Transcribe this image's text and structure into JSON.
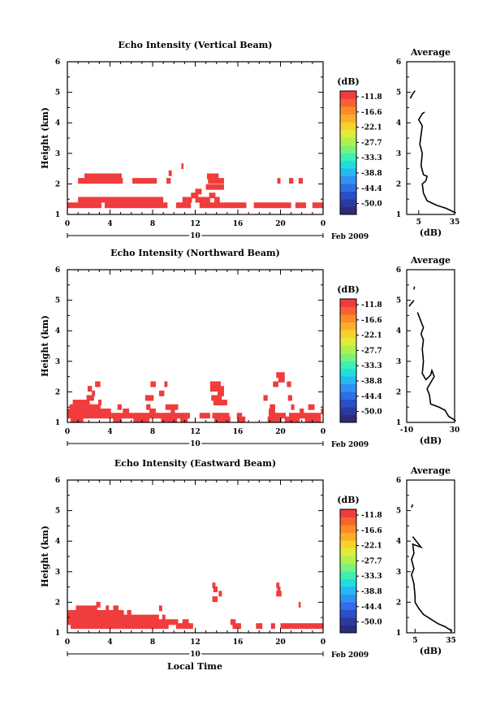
{
  "figure": {
    "date_label": "Feb 2009",
    "day_label": "10",
    "xlabel": "Local Time",
    "colorbar_unit": "(dB)",
    "colorbar_ticks": [
      "-11.8",
      "-16.6",
      "-22.1",
      "-27.7",
      "-33.3",
      "-38.8",
      "-44.4",
      "-50.0"
    ],
    "colorbar_colors": [
      "#2c2c7c",
      "#2c3a9c",
      "#2850c8",
      "#2f6ee4",
      "#2f92f2",
      "#26b8f0",
      "#22dde0",
      "#3ef0b0",
      "#7cf27a",
      "#b2f050",
      "#e0ec38",
      "#f6d22c",
      "#fcae28",
      "#fc8a2c",
      "#f8622e",
      "#f03c3c"
    ],
    "echo_color": "#f03c3c",
    "x_ticks": [
      "0",
      "4",
      "8",
      "12",
      "16",
      "20",
      "0"
    ],
    "ylabel": "Height (km)",
    "y_ticks": [
      "1",
      "2",
      "3",
      "4",
      "5",
      "6"
    ],
    "avg_title": "Average",
    "avg_xlabel": "(dB)"
  },
  "panels": [
    {
      "title": "Echo Intensity (Vertical Beam)",
      "avg_ticks": [
        "5",
        "35"
      ],
      "avg_xlim": [
        -5,
        35
      ],
      "echo_rows": [
        {
          "h": 1.3,
          "segs": [
            [
              0,
              3.2
            ],
            [
              3.5,
              9.4
            ],
            [
              10.2,
              11.6
            ],
            [
              12.4,
              16.8
            ],
            [
              17.5,
              21
            ],
            [
              21.4,
              22.4
            ],
            [
              23,
              24
            ]
          ]
        },
        {
          "h": 1.48,
          "segs": [
            [
              1,
              9
            ],
            [
              10.8,
              11.7
            ],
            [
              12,
              13.4
            ],
            [
              13.8,
              14.3
            ]
          ]
        },
        {
          "h": 1.62,
          "segs": [
            [
              11.6,
              12.3
            ],
            [
              13.3,
              13.9
            ]
          ]
        },
        {
          "h": 1.75,
          "segs": [
            [
              12,
              12.6
            ]
          ]
        },
        {
          "h": 1.9,
          "segs": [
            [
              13,
              14.7
            ]
          ]
        },
        {
          "h": 2.1,
          "segs": [
            [
              1,
              5.2
            ],
            [
              6.1,
              8.4
            ],
            [
              9.3,
              9.7
            ],
            [
              13.2,
              14.7
            ],
            [
              19.7,
              20
            ],
            [
              20.8,
              21.2
            ],
            [
              21.7,
              22.1
            ]
          ]
        },
        {
          "h": 2.25,
          "segs": [
            [
              1.6,
              5.1
            ],
            [
              13.1,
              14.2
            ]
          ]
        },
        {
          "h": 2.35,
          "segs": [
            [
              9.5,
              9.8
            ]
          ]
        },
        {
          "h": 2.58,
          "segs": [
            [
              10.7,
              10.9
            ]
          ]
        }
      ],
      "avg_profile": [
        [
          36,
          1.05
        ],
        [
          28,
          1.2
        ],
        [
          20,
          1.3
        ],
        [
          12,
          1.45
        ],
        [
          9,
          1.7
        ],
        [
          8,
          2.0
        ],
        [
          11,
          2.1
        ],
        [
          12,
          2.25
        ],
        [
          9,
          2.3
        ],
        [
          7,
          2.6
        ],
        [
          8,
          3.0
        ],
        [
          6,
          3.3
        ],
        [
          7,
          3.6
        ],
        [
          8,
          3.9
        ],
        [
          5,
          4.1
        ],
        [
          8,
          4.3
        ],
        [
          10,
          4.35
        ]
      ],
      "avg_profile2": [
        [
          -2,
          4.8
        ],
        [
          0,
          4.95
        ],
        [
          2,
          5.05
        ]
      ]
    },
    {
      "title": "Echo Intensity (Northward Beam)",
      "avg_ticks": [
        "-10",
        "30"
      ],
      "avg_xlim": [
        -10,
        30
      ],
      "echo_rows": [
        {
          "h": 1.1,
          "segs": [
            [
              0.3,
              1.5
            ],
            [
              4.3,
              5.1
            ],
            [
              6.2,
              7.7
            ],
            [
              8.8,
              10.3
            ],
            [
              10.6,
              11.3
            ],
            [
              13.8,
              15.3
            ],
            [
              16,
              16.7
            ],
            [
              18.8,
              20.1
            ],
            [
              20.4,
              21.8
            ],
            [
              22.3,
              23.8
            ]
          ]
        },
        {
          "h": 1.22,
          "segs": [
            [
              0,
              11.5
            ],
            [
              12.4,
              13.4
            ],
            [
              13.6,
              15.2
            ],
            [
              15.9,
              16.4
            ],
            [
              18.9,
              20.5
            ],
            [
              20.8,
              23.8
            ]
          ]
        },
        {
          "h": 1.36,
          "segs": [
            [
              0,
              4.1
            ],
            [
              5.2,
              5.8
            ],
            [
              7.7,
              8.3
            ],
            [
              9.7,
              10.1
            ],
            [
              18.9,
              19.5
            ],
            [
              21.8,
              22.2
            ],
            [
              23.8,
              24
            ]
          ]
        },
        {
          "h": 1.5,
          "segs": [
            [
              0.2,
              3.1
            ],
            [
              4.7,
              5.1
            ],
            [
              7.4,
              7.8
            ],
            [
              9.2,
              10.4
            ],
            [
              19,
              19.5
            ],
            [
              21,
              21.3
            ],
            [
              22.6,
              23.2
            ]
          ]
        },
        {
          "h": 1.65,
          "segs": [
            [
              0.5,
              2.1
            ],
            [
              2.9,
              3.2
            ],
            [
              13.7,
              15
            ]
          ]
        },
        {
          "h": 1.8,
          "segs": [
            [
              1.8,
              2.5
            ],
            [
              7.3,
              8.1
            ],
            [
              13.5,
              14.5
            ],
            [
              18.4,
              18.8
            ],
            [
              20.7,
              21.1
            ]
          ]
        },
        {
          "h": 1.95,
          "segs": [
            [
              2.3,
              2.6
            ],
            [
              8.6,
              9.1
            ],
            [
              14.1,
              14.7
            ]
          ]
        },
        {
          "h": 2.1,
          "segs": [
            [
              1.9,
              2.3
            ],
            [
              13.4,
              14.7
            ]
          ]
        },
        {
          "h": 2.25,
          "segs": [
            [
              2.6,
              3.1
            ],
            [
              7.8,
              8.3
            ],
            [
              9.1,
              9.4
            ],
            [
              13.4,
              14.4
            ],
            [
              19.3,
              19.8
            ],
            [
              20.6,
              21
            ]
          ]
        },
        {
          "h": 2.4,
          "segs": [
            [
              19.8,
              20.4
            ]
          ]
        },
        {
          "h": 2.55,
          "segs": [
            [
              19.6,
              20.4
            ]
          ]
        }
      ],
      "avg_profile": [
        [
          31,
          1.05
        ],
        [
          25,
          1.2
        ],
        [
          22,
          1.4
        ],
        [
          17,
          1.5
        ],
        [
          10,
          1.6
        ],
        [
          9,
          1.9
        ],
        [
          7,
          2.1
        ],
        [
          13,
          2.5
        ],
        [
          11,
          2.7
        ],
        [
          10,
          2.55
        ],
        [
          6,
          2.4
        ],
        [
          3,
          2.6
        ],
        [
          4,
          3.0
        ],
        [
          3,
          3.4
        ],
        [
          4,
          3.7
        ],
        [
          2,
          3.9
        ],
        [
          4,
          4.1
        ],
        [
          2,
          4.3
        ],
        [
          0,
          4.5
        ],
        [
          -1,
          4.6
        ]
      ],
      "avg_profile2": [
        [
          -8,
          4.8
        ],
        [
          -6,
          4.9
        ],
        [
          -4,
          5.0
        ]
      ],
      "avg_profile3": [
        [
          -4,
          5.35
        ],
        [
          -3.5,
          5.45
        ]
      ]
    },
    {
      "title": "Echo Intensity (Eastward Beam)",
      "avg_ticks": [
        "5",
        "35"
      ],
      "avg_xlim": [
        -2,
        38
      ],
      "echo_rows": [
        {
          "h": 1.22,
          "segs": [
            [
              0.3,
              9.5
            ],
            [
              10.2,
              11.8
            ],
            [
              15.5,
              16.3
            ],
            [
              17.7,
              18.3
            ],
            [
              19.1,
              19.5
            ],
            [
              20,
              24
            ]
          ]
        },
        {
          "h": 1.35,
          "segs": [
            [
              0,
              10.4
            ],
            [
              10.8,
              11.4
            ],
            [
              15.3,
              15.8
            ]
          ]
        },
        {
          "h": 1.5,
          "segs": [
            [
              0,
              8.6
            ],
            [
              8.9,
              9.2
            ]
          ]
        },
        {
          "h": 1.65,
          "segs": [
            [
              0,
              5.3
            ],
            [
              5.6,
              6
            ]
          ]
        },
        {
          "h": 1.8,
          "segs": [
            [
              0.8,
              2.8
            ],
            [
              3.6,
              3.9
            ],
            [
              4.3,
              4.8
            ],
            [
              8.6,
              8.9
            ]
          ]
        },
        {
          "h": 1.92,
          "segs": [
            [
              2.7,
              3.1
            ],
            [
              21.7,
              21.9
            ]
          ]
        },
        {
          "h": 2.1,
          "segs": [
            [
              13.6,
              14.1
            ]
          ]
        },
        {
          "h": 2.28,
          "segs": [
            [
              14.2,
              14.5
            ],
            [
              19.6,
              20.1
            ]
          ]
        },
        {
          "h": 2.42,
          "segs": [
            [
              13.7,
              14.1
            ],
            [
              19.7,
              20
            ]
          ]
        },
        {
          "h": 2.55,
          "segs": [
            [
              13.6,
              13.9
            ],
            [
              19.6,
              19.9
            ]
          ]
        }
      ],
      "avg_profile": [
        [
          36,
          1.05
        ],
        [
          30,
          1.2
        ],
        [
          24,
          1.3
        ],
        [
          18,
          1.45
        ],
        [
          12,
          1.6
        ],
        [
          8,
          1.8
        ],
        [
          5,
          2.0
        ],
        [
          5,
          2.2
        ],
        [
          4,
          2.6
        ],
        [
          2,
          2.9
        ],
        [
          4,
          3.1
        ],
        [
          2,
          3.4
        ],
        [
          4,
          3.6
        ],
        [
          3,
          3.9
        ],
        [
          10,
          3.8
        ],
        [
          6,
          4.0
        ],
        [
          3,
          4.15
        ]
      ],
      "avg_profile2": [
        [
          2,
          5.1
        ],
        [
          3,
          5.2
        ]
      ]
    }
  ]
}
